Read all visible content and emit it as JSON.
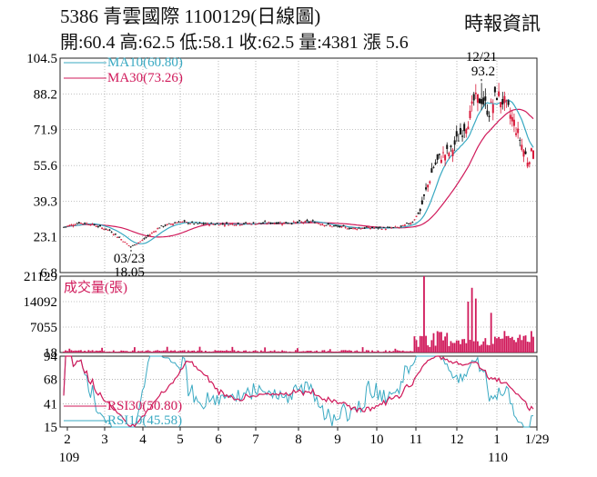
{
  "header": {
    "title": "5386  青雲國際 1100129(日線圖)",
    "ohlc": "開:60.4 高:62.5 低:58.1 收:62.5 量:4381 漲 5.6",
    "source": "時報資訊"
  },
  "colors": {
    "up_candle": "#d81b3b",
    "down_candle": "#111111",
    "ma10": "#39a9c2",
    "ma30": "#d0195a",
    "volume": "#d0195a",
    "rsi30": "#d0195a",
    "rsi10": "#39a9c2",
    "grid": "#888888"
  },
  "chart_data": [
    {
      "type": "candlestick",
      "name": "price",
      "yticks": [
        "104.5",
        "88.2",
        "71.9",
        "55.6",
        "39.3",
        "23.1",
        "6.8"
      ],
      "ylim": [
        6.8,
        104.5
      ],
      "grid": true,
      "legend": [
        {
          "label": "MA10(60.80)",
          "series": "ma10"
        },
        {
          "label": "MA30(73.26)",
          "series": "ma30"
        }
      ],
      "annotations": [
        {
          "date_label": "12/21",
          "value_label": "93.2",
          "value": 93.2,
          "kind": "high"
        },
        {
          "date_label": "03/23",
          "value_label": "18.05",
          "value": 18.05,
          "kind": "low"
        }
      ],
      "last_close": 62.5
    },
    {
      "type": "bar",
      "name": "volume",
      "label": "成交量(張)",
      "yticks": [
        "21129",
        "14092",
        "7055",
        "18"
      ],
      "ylim": [
        18,
        21129
      ],
      "last_value": 4381
    },
    {
      "type": "line",
      "name": "rsi",
      "yticks": [
        "94",
        "68",
        "41",
        "15"
      ],
      "ylim": [
        15,
        94
      ],
      "legend": [
        {
          "label": "RSI30(50.80)",
          "series": "rsi30"
        },
        {
          "label": "RSI10(45.58)",
          "series": "rsi10"
        }
      ],
      "x_month_labels": [
        "2",
        "3",
        "4",
        "5",
        "6",
        "7",
        "8",
        "9",
        "10",
        "11",
        "12",
        "1",
        "1/29"
      ],
      "x_year_labels": [
        "109",
        "110"
      ]
    }
  ]
}
